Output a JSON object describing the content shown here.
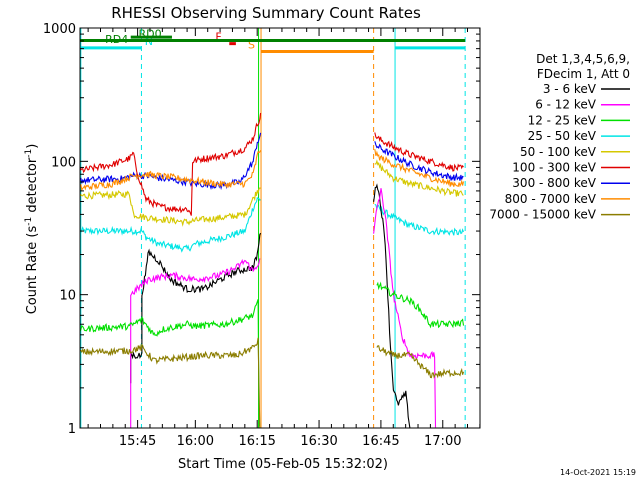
{
  "chart_data": {
    "type": "line",
    "title": "RHESSI Observing Summary Count Rates",
    "xlabel": "Start Time (05-Feb-05 15:32:02)",
    "ylabel_main": "Count Rate (s",
    "ylabel_exp1": "-1",
    "ylabel_mid": " detector",
    "ylabel_exp2": "-1",
    "ylabel_end": ")",
    "x_unit": "minutes since 15:32:02",
    "xlim": [
      0,
      97
    ],
    "ylim": [
      1,
      1000
    ],
    "yscale": "log",
    "grid": false,
    "legend_position": "right",
    "footer": "14-Oct-2021 15:19",
    "xticks": [
      {
        "t": 13.97,
        "label": "15:45"
      },
      {
        "t": 27.97,
        "label": "16:00"
      },
      {
        "t": 42.97,
        "label": "16:15"
      },
      {
        "t": 57.97,
        "label": "16:30"
      },
      {
        "t": 72.97,
        "label": "16:45"
      },
      {
        "t": 87.97,
        "label": "17:00"
      }
    ],
    "xminor": [
      1.97,
      4.97,
      7.97,
      10.97,
      16.97,
      19.97,
      22.97,
      25.97,
      30.97,
      33.97,
      36.97,
      39.97,
      45.97,
      48.97,
      51.97,
      54.97,
      60.97,
      63.97,
      66.97,
      69.97,
      75.97,
      78.97,
      81.97,
      84.97,
      90.97,
      93.97,
      96.97
    ],
    "yticks": [
      {
        "v": 1,
        "label": "1"
      },
      {
        "v": 10,
        "label": "10"
      },
      {
        "v": 100,
        "label": "100"
      },
      {
        "v": 1000,
        "label": "1000"
      }
    ],
    "legend_header": [
      "Det 1,3,4,5,6,9,",
      "FDecim 1, Att 0"
    ],
    "series": [
      {
        "name": "3 - 6 keV",
        "color": "#000000"
      },
      {
        "name": "6 - 12 keV",
        "color": "#ff00ff"
      },
      {
        "name": "12 - 25 keV",
        "color": "#00e000"
      },
      {
        "name": "25 - 50 keV",
        "color": "#00e5e5"
      },
      {
        "name": "50 - 100 keV",
        "color": "#d5c800"
      },
      {
        "name": "100 - 300 keV",
        "color": "#e00000"
      },
      {
        "name": "300 - 800 keV",
        "color": "#0000ee"
      },
      {
        "name": "800 - 7000 keV",
        "color": "#ff8c00"
      },
      {
        "name": "7000 - 15000 keV",
        "color": "#8b7d00"
      }
    ],
    "traces": [
      {
        "color": "#00e5e5",
        "segments": [
          [
            [
              0,
              30
            ],
            [
              10,
              30
            ],
            [
              15,
              30
            ],
            [
              16,
              27
            ],
            [
              19,
              24
            ],
            [
              26,
              22
            ],
            [
              28,
              24
            ],
            [
              35,
              27
            ],
            [
              40,
              30
            ],
            [
              42,
              45
            ],
            [
              43,
              52
            ],
            [
              43.8,
              52
            ]
          ],
          [
            [
              71.5,
              48
            ],
            [
              72,
              45
            ],
            [
              76,
              38
            ],
            [
              80,
              33
            ],
            [
              85,
              30
            ],
            [
              90,
              29.5
            ],
            [
              93,
              29
            ]
          ]
        ]
      },
      {
        "color": "#d5c800",
        "segments": [
          [
            [
              0,
              55
            ],
            [
              7,
              56
            ],
            [
              12,
              57
            ],
            [
              13,
              40
            ],
            [
              16,
              38
            ],
            [
              19,
              37
            ],
            [
              26,
              35
            ],
            [
              28,
              36
            ],
            [
              35,
              38
            ],
            [
              40,
              40
            ],
            [
              43,
              60
            ],
            [
              43.8,
              66
            ]
          ],
          [
            [
              71.5,
              100
            ],
            [
              72,
              95
            ],
            [
              76,
              75
            ],
            [
              80,
              68
            ],
            [
              85,
              63
            ],
            [
              90,
              58
            ],
            [
              93,
              57
            ]
          ]
        ]
      },
      {
        "color": "#e00000",
        "segments": [
          [
            [
              0,
              85
            ],
            [
              8,
              95
            ],
            [
              12,
              105
            ],
            [
              13,
              115
            ],
            [
              13.5,
              90
            ],
            [
              16,
              52
            ],
            [
              19,
              46
            ],
            [
              23,
              44
            ],
            [
              26,
              44
            ],
            [
              27,
              40
            ],
            [
              27.3,
              100
            ],
            [
              30,
              105
            ],
            [
              35,
              110
            ],
            [
              40,
              125
            ],
            [
              42,
              150
            ],
            [
              43,
              190
            ],
            [
              43.8,
              220
            ]
          ],
          [
            [
              71.5,
              165
            ],
            [
              72,
              150
            ],
            [
              76,
              128
            ],
            [
              80,
              112
            ],
            [
              85,
              100
            ],
            [
              90,
              90
            ],
            [
              93,
              88
            ]
          ]
        ]
      },
      {
        "color": "#0000ee",
        "segments": [
          [
            [
              0,
              72
            ],
            [
              10,
              74
            ],
            [
              13,
              78
            ],
            [
              16,
              78
            ],
            [
              20,
              74
            ],
            [
              26,
              70
            ],
            [
              28,
              68
            ],
            [
              34,
              66
            ],
            [
              39,
              70
            ],
            [
              42,
              100
            ],
            [
              43,
              140
            ],
            [
              43.8,
              155
            ]
          ],
          [
            [
              71.5,
              140
            ],
            [
              72,
              130
            ],
            [
              76,
              110
            ],
            [
              80,
              95
            ],
            [
              85,
              83
            ],
            [
              90,
              76
            ],
            [
              93,
              75
            ]
          ]
        ]
      },
      {
        "color": "#ff8c00",
        "segments": [
          [
            [
              0,
              63
            ],
            [
              8,
              68
            ],
            [
              13,
              78
            ],
            [
              16,
              80
            ],
            [
              22,
              76
            ],
            [
              26,
              73
            ],
            [
              30,
              70
            ],
            [
              35,
              67
            ],
            [
              40,
              68
            ],
            [
              42,
              80
            ],
            [
              43,
              110
            ],
            [
              43.8,
              125
            ]
          ],
          [
            [
              71.5,
              118
            ],
            [
              72,
              110
            ],
            [
              76,
              95
            ],
            [
              80,
              85
            ],
            [
              85,
              75
            ],
            [
              90,
              68
            ],
            [
              93,
              67
            ]
          ]
        ]
      },
      {
        "color": "#000000",
        "segments": [
          [
            [
              12.3,
              2.2
            ],
            [
              12.3,
              3.5
            ],
            [
              15,
              3.5
            ],
            [
              15,
              10
            ],
            [
              16.3,
              17
            ],
            [
              16.5,
              21
            ],
            [
              19,
              18
            ],
            [
              22,
              13
            ],
            [
              26,
              11
            ],
            [
              30,
              11
            ],
            [
              34,
              13
            ],
            [
              38,
              15
            ],
            [
              42,
              16
            ],
            [
              43,
              20
            ],
            [
              43.8,
              30
            ]
          ],
          [
            [
              71.2,
              52
            ],
            [
              72,
              70
            ],
            [
              73,
              45
            ],
            [
              74,
              25
            ],
            [
              75.3,
              4
            ],
            [
              76,
              2
            ],
            [
              77,
              1.5
            ],
            [
              79,
              1.8
            ],
            [
              80,
              1.0
            ]
          ]
        ]
      },
      {
        "color": "#ff00ff",
        "segments": [
          [
            [
              12.3,
              1
            ],
            [
              12.3,
              10
            ],
            [
              16.5,
              13
            ],
            [
              22,
              14
            ],
            [
              28,
              13
            ],
            [
              34,
              14
            ],
            [
              38,
              16
            ],
            [
              40,
              18
            ],
            [
              42,
              15
            ],
            [
              43.6,
              18
            ]
          ],
          [
            [
              71.2,
              28
            ],
            [
              72,
              45
            ],
            [
              73,
              60
            ],
            [
              74,
              40
            ],
            [
              75,
              20
            ],
            [
              76,
              10
            ],
            [
              78,
              5
            ],
            [
              80,
              3.5
            ],
            [
              83,
              3.5
            ],
            [
              86,
              3.5
            ],
            [
              86.2,
              1
            ]
          ]
        ]
      },
      {
        "color": "#00e000",
        "segments": [
          [
            [
              0,
              5.5
            ],
            [
              12,
              5.8
            ],
            [
              13,
              6
            ],
            [
              15,
              6.5
            ],
            [
              18,
              5
            ],
            [
              20,
              5.5
            ],
            [
              26,
              6
            ],
            [
              28,
              5.8
            ],
            [
              35,
              6.0
            ],
            [
              39,
              6.5
            ],
            [
              42,
              7
            ],
            [
              43.2,
              9
            ],
            [
              43.4,
              1
            ]
          ],
          [
            [
              72,
              12
            ],
            [
              76,
              10
            ],
            [
              80,
              9
            ],
            [
              82,
              8
            ],
            [
              85,
              6
            ],
            [
              90,
              6
            ],
            [
              93,
              6.2
            ]
          ]
        ]
      },
      {
        "color": "#8b7d00",
        "segments": [
          [
            [
              0,
              3.7
            ],
            [
              12,
              3.8
            ],
            [
              15,
              4.0
            ],
            [
              18,
              3.2
            ],
            [
              26,
              3.4
            ],
            [
              30,
              3.5
            ],
            [
              38,
              3.5
            ],
            [
              42,
              4
            ],
            [
              43.2,
              4.5
            ],
            [
              43.6,
              1
            ]
          ],
          [
            [
              72,
              4
            ],
            [
              76,
              3.5
            ],
            [
              80,
              3.5
            ],
            [
              85,
              2.5
            ],
            [
              90,
              2.6
            ],
            [
              93,
              2.6
            ]
          ]
        ]
      }
    ],
    "verticals": [
      {
        "t": 43.9,
        "color": "#ff8c00",
        "dash": false
      },
      {
        "t": 43.3,
        "color": "#00e000",
        "dash": false
      },
      {
        "t": 71.2,
        "color": "#ff8c00",
        "dash": true
      },
      {
        "t": 14.9,
        "color": "#00e5e5",
        "dash": true
      },
      {
        "t": 93.4,
        "color": "#00e5e5",
        "dash": true
      },
      {
        "t": 0.2,
        "color": "#00e5e5",
        "dash": false
      },
      {
        "t": 76.4,
        "color": "#00e5e5",
        "dash": false
      }
    ],
    "flag_bars": [
      {
        "label": "N",
        "color": "#00e5e5",
        "t0": 0,
        "t1": 14.9,
        "y": 1.41,
        "label_t": 16.7
      },
      {
        "label": "N",
        "color": "#00e5e5",
        "t0": 76.4,
        "t1": 93.4,
        "y": 1.41,
        "label_t": null
      },
      {
        "label": "S",
        "color": "#ff8c00",
        "t0": 43.9,
        "t1": 71.2,
        "y": 1.5,
        "label_t": 41.6
      },
      {
        "label": "F",
        "color": "#e00000",
        "t0": 36.2,
        "t1": 37.8,
        "y": 1.31,
        "label_t": 33.6
      },
      {
        "label": "RD0",
        "color": "#008000",
        "t0": 0,
        "t1": 93.4,
        "y": 1.24,
        "label_t": 17.0
      },
      {
        "label": "RD4",
        "color": "#008000",
        "t0": 12.3,
        "t1": 22.3,
        "y": 1.17,
        "label_t": 8.9
      }
    ]
  }
}
